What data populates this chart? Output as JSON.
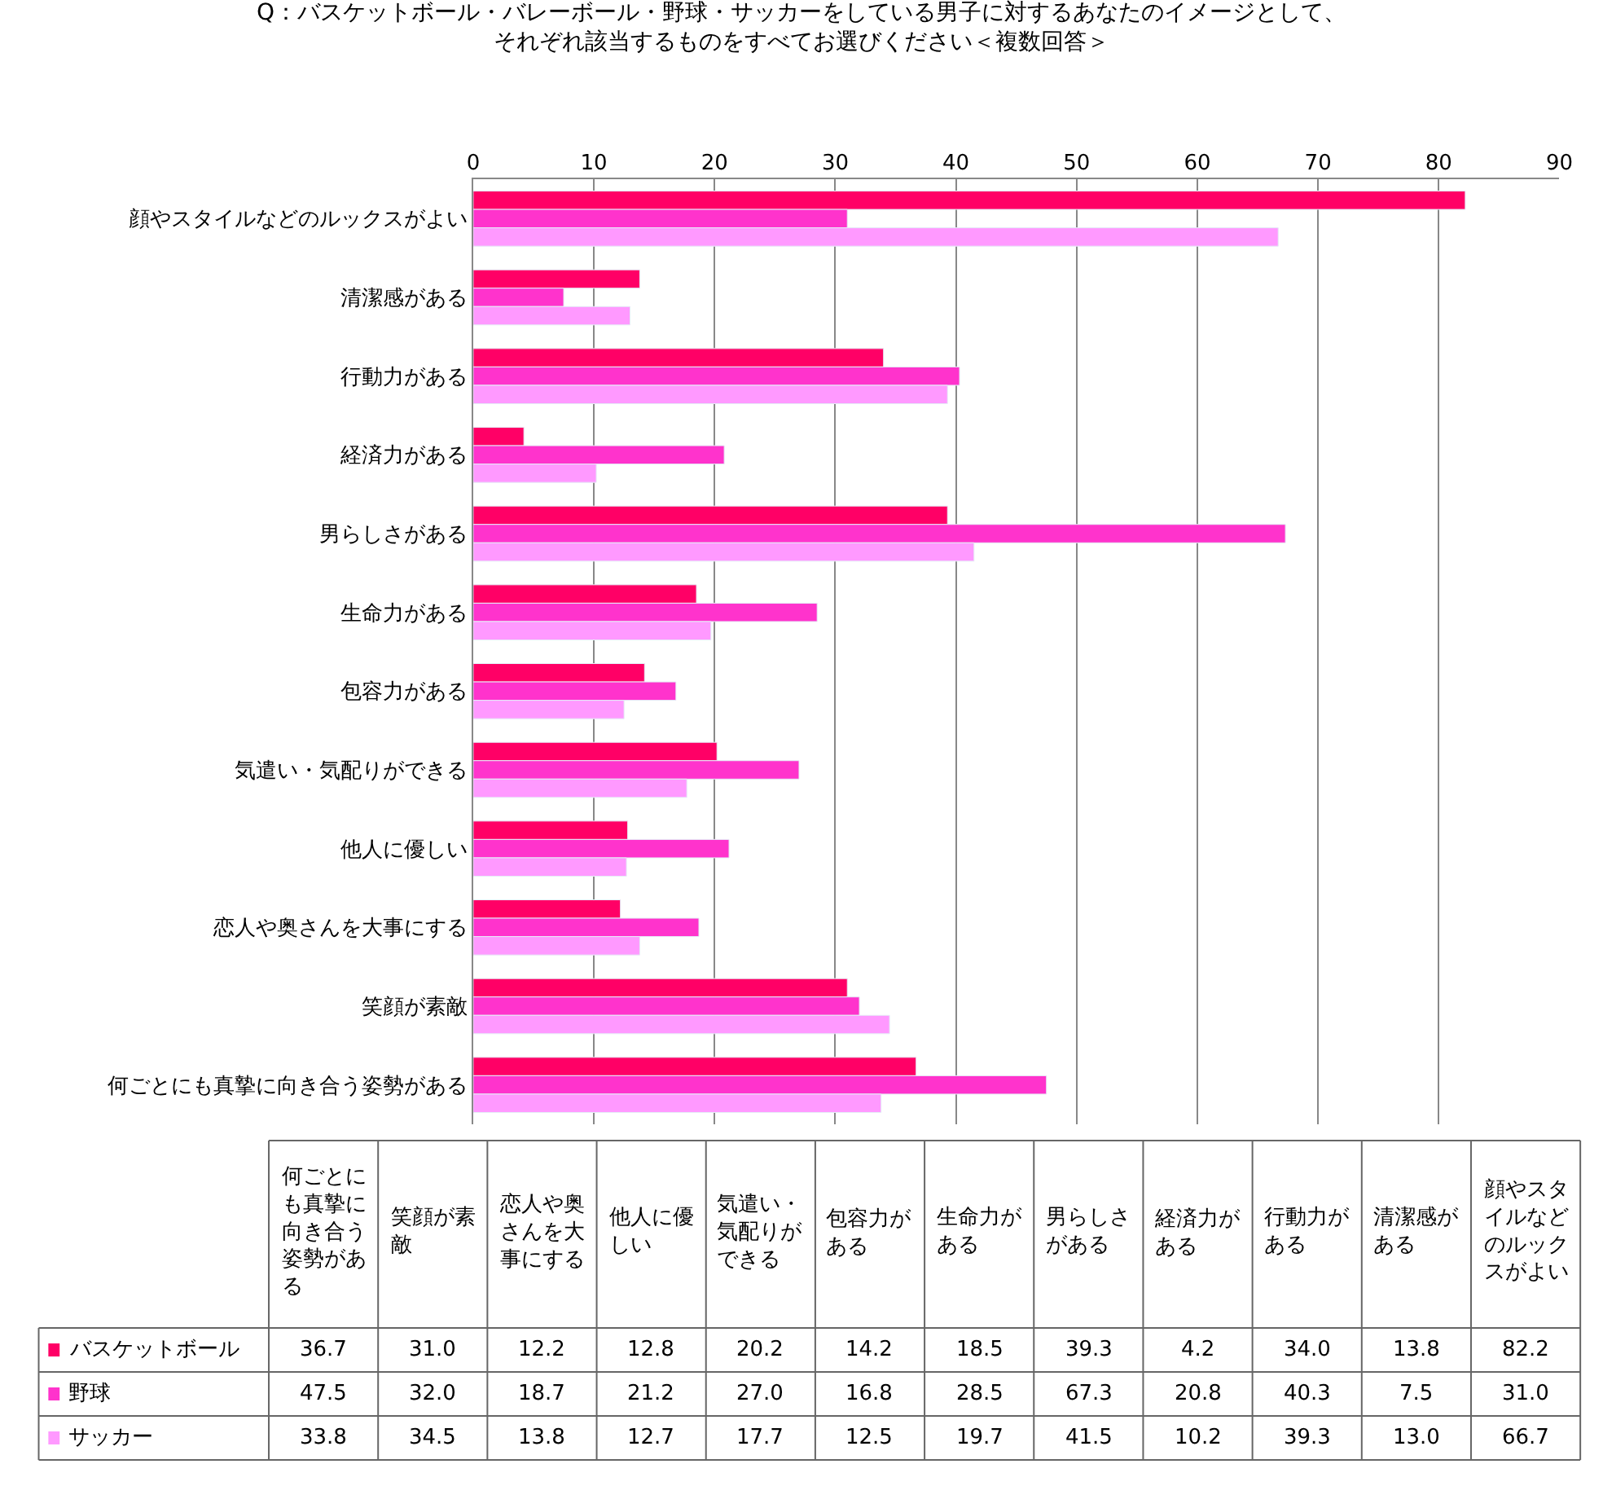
{
  "chart_data": [
    {
      "type": "bar",
      "orientation": "horizontal",
      "title": "Q：バスケットボール・バレーボール・野球・サッカーをしている男子に対するあなたのイメージとして、それぞれ該当するものをすべてお選びください＜複数回答＞",
      "categories": [
        "顔やスタイルなどのルックスがよい",
        "清潔感がある",
        "行動力がある",
        "経済力がある",
        "男らしさがある",
        "生命力がある",
        "包容力がある",
        "気遣い・気配りができる",
        "他人に優しい",
        "恋人や奥さんを大事にする",
        "笑顔が素敵",
        "何ごとにも真摯に向き合う姿勢がある"
      ],
      "series": [
        {
          "color": "#ff0066",
          "values": [
            82.2,
            13.8,
            34.0,
            4.2,
            39.3,
            18.5,
            14.2,
            20.2,
            12.8,
            12.2,
            31.0,
            36.7
          ]
        },
        {
          "color": "#ff33cc",
          "values": [
            31.0,
            7.5,
            40.3,
            20.8,
            67.3,
            28.5,
            16.8,
            27.0,
            21.2,
            18.7,
            32.0,
            47.5
          ]
        },
        {
          "color": "#ff99ff",
          "values": [
            66.7,
            13.0,
            39.3,
            10.2,
            41.5,
            19.7,
            12.5,
            17.7,
            12.7,
            13.8,
            34.5,
            33.8
          ]
        }
      ],
      "xlim": [
        0,
        90
      ],
      "xticks": [
        0,
        10,
        20,
        30,
        40,
        50,
        60,
        70,
        80,
        90
      ],
      "grid": "x"
    },
    {
      "type": "other",
      "categories": [
        "何ごとにも真摯に向き合う姿勢がある",
        "笑顔が素敵",
        "恋人や奥さんを大事にする",
        "他人に優しい",
        "気遣い・気配りができる",
        "包容力がある",
        "生命力がある",
        "男らしさがある",
        "経済力がある",
        "行動力がある",
        "清潔感がある",
        "顔やスタイルなどのルックスがよい"
      ],
      "series": [
        {
          "name": "バスケットボール",
          "color": "#ff0066",
          "values": [
            36.7,
            31.0,
            12.2,
            12.8,
            20.2,
            14.2,
            18.5,
            39.3,
            4.2,
            34.0,
            13.8,
            82.2
          ],
          "value_labels": [
            "36.7",
            "31.0",
            "12.2",
            "12.8",
            "20.2",
            "14.2",
            "18.5",
            "39.3",
            "4.2",
            "34.0",
            "13.8",
            "82.2"
          ]
        },
        {
          "name": "野球",
          "color": "#ff33cc",
          "values": [
            47.5,
            32.0,
            18.7,
            21.2,
            27.0,
            16.8,
            28.5,
            67.3,
            20.8,
            40.3,
            7.5,
            31.0
          ],
          "value_labels": [
            "47.5",
            "32.0",
            "18.7",
            "21.2",
            "27.0",
            "16.8",
            "28.5",
            "67.3",
            "20.8",
            "40.3",
            "7.5",
            "31.0"
          ]
        },
        {
          "name": "サッカー",
          "color": "#ff99ff",
          "values": [
            33.8,
            34.5,
            13.8,
            12.7,
            17.7,
            12.5,
            19.7,
            41.5,
            10.2,
            39.3,
            13.0,
            66.7
          ],
          "value_labels": [
            "33.8",
            "34.5",
            "13.8",
            "12.7",
            "17.7",
            "12.5",
            "19.7",
            "41.5",
            "10.2",
            "39.3",
            "13.0",
            "66.7"
          ]
        }
      ],
      "legend": "left"
    }
  ]
}
